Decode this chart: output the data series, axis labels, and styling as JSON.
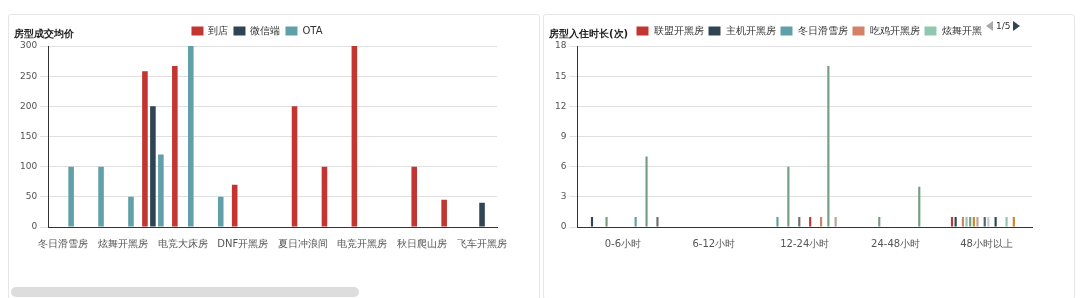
{
  "chart_data": [
    {
      "type": "bar",
      "title": "房型成交均价",
      "categories": [
        "冬日滑雪房",
        null,
        "炫舞开黑房",
        null,
        "电竞大床房",
        null,
        "DNF开黑房",
        null,
        "夏日冲浪间",
        null,
        "电竞开黑房",
        null,
        "秋日爬山房",
        null,
        "飞车开黑房"
      ],
      "series": [
        {
          "name": "到店",
          "color": "#c23531",
          "values": [
            0,
            0,
            0,
            258,
            267,
            0,
            70,
            0,
            200,
            100,
            300,
            0,
            100,
            45,
            0
          ]
        },
        {
          "name": "微信端",
          "color": "#2f4554",
          "values": [
            0,
            0,
            0,
            200,
            0,
            0,
            0,
            0,
            0,
            0,
            0,
            0,
            0,
            0,
            40
          ]
        },
        {
          "name": "OTA",
          "color": "#61a0a8",
          "values": [
            100,
            100,
            50,
            120,
            300,
            50,
            0,
            0,
            0,
            0,
            0,
            0,
            0,
            0,
            0
          ]
        }
      ],
      "ylim": [
        0,
        300
      ],
      "yticks": [
        0,
        50,
        100,
        150,
        200,
        250,
        300
      ],
      "grid": "y",
      "legend": "top"
    },
    {
      "type": "bar",
      "title": "房型入住时长(次)",
      "categories": [
        "0-6小时",
        "6-12小时",
        "12-24小时",
        "24-48小时",
        "48小时以上"
      ],
      "series": [
        {
          "name": "联盟开黑房",
          "color": "#c23531",
          "values": [
            0,
            0,
            0,
            0,
            1
          ]
        },
        {
          "name": "主机开黑房",
          "color": "#2f4554",
          "values": [
            1,
            0,
            0,
            0,
            1
          ]
        },
        {
          "name": "冬日滑雪房",
          "color": "#61a0a8",
          "values": [
            0,
            0,
            1,
            0,
            0
          ]
        },
        {
          "name": "吃鸡开黑房",
          "color": "#d48265",
          "values": [
            0,
            0,
            0,
            0,
            1
          ]
        },
        {
          "name": "炫舞开黑",
          "color": "#91c7ae",
          "values": [
            0,
            0,
            0,
            0,
            1
          ]
        },
        {
          "color": "#749f83",
          "values": [
            1,
            0,
            6,
            1,
            1
          ]
        },
        {
          "color": "#ca8622",
          "values": [
            0,
            0,
            0,
            0,
            1
          ]
        },
        {
          "color": "#bda29a",
          "values": [
            0,
            0,
            0,
            0,
            1
          ]
        },
        {
          "color": "#6e7074",
          "values": [
            0,
            0,
            1,
            0,
            0
          ]
        },
        {
          "color": "#546570",
          "values": [
            0,
            0,
            0,
            0,
            1
          ]
        },
        {
          "color": "#c4ccd3",
          "values": [
            0,
            0,
            0,
            0,
            1
          ]
        },
        {
          "color": "#c23531",
          "values": [
            0,
            0,
            1,
            0,
            0
          ]
        },
        {
          "color": "#2f4554",
          "values": [
            0,
            0,
            0,
            0,
            1
          ]
        },
        {
          "color": "#61a0a8",
          "values": [
            1,
            0,
            0,
            0,
            0
          ]
        },
        {
          "color": "#d48265",
          "values": [
            0,
            0,
            1,
            0,
            0
          ]
        },
        {
          "color": "#91c7ae",
          "values": [
            0,
            0,
            0,
            0,
            1
          ]
        },
        {
          "color": "#749f83",
          "values": [
            7,
            0,
            16,
            4,
            0
          ]
        },
        {
          "color": "#ca8622",
          "values": [
            0,
            0,
            0,
            0,
            1
          ]
        },
        {
          "color": "#bda29a",
          "values": [
            0,
            0,
            1,
            0,
            0
          ]
        },
        {
          "color": "#6e7074",
          "values": [
            1,
            0,
            0,
            0,
            0
          ]
        }
      ],
      "ylim": [
        0,
        18
      ],
      "yticks": [
        0,
        3,
        6,
        9,
        12,
        15,
        18
      ],
      "grid": "y",
      "legend": "top",
      "annotations": [
        "1/5"
      ]
    }
  ]
}
